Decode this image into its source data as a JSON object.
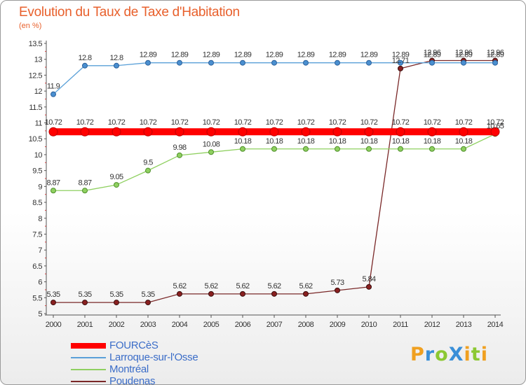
{
  "title": "Evolution du Taux de Taxe d'Habitation",
  "subtitle": "(en %)",
  "logo": {
    "text": "ProXiti",
    "letters": [
      "P",
      "r",
      "o",
      "X",
      "i",
      "t",
      "i"
    ],
    "colors": [
      "#f0a020",
      "#3a8fd8",
      "#8cc832",
      "#3a8fd8",
      "#f0a020",
      "#8cc832",
      "#f0a020"
    ]
  },
  "chart_data": {
    "type": "line",
    "title": "Evolution du Taux de Taxe d'Habitation",
    "subtitle": "(en %)",
    "xlabel": "",
    "ylabel": "",
    "x": [
      "2000",
      "2001",
      "2002",
      "2003",
      "2004",
      "2005",
      "2006",
      "2007",
      "2008",
      "2009",
      "2010",
      "2011",
      "2012",
      "2013",
      "2014"
    ],
    "ylim": [
      5,
      13.5
    ],
    "yticks": [
      "5",
      "5.5",
      "6",
      "6.5",
      "7",
      "7.5",
      "8",
      "8.5",
      "9",
      "9.5",
      "10",
      "10.5",
      "11",
      "11.5",
      "12",
      "12.5",
      "13",
      "13.5"
    ],
    "grid": false,
    "legend": "bottom-left",
    "series": [
      {
        "name": "FOURCèS",
        "color": "#ff0000",
        "values": [
          10.72,
          10.72,
          10.72,
          10.72,
          10.72,
          10.72,
          10.72,
          10.72,
          10.72,
          10.72,
          10.72,
          10.72,
          10.72,
          10.72,
          10.72
        ],
        "labels": [
          "10.72",
          "10.72",
          "10.72",
          "10.72",
          "10.72",
          "10.72",
          "10.72",
          "10.72",
          "10.72",
          "10.72",
          "10.72",
          "10.72",
          "10.72",
          "10.72",
          "10.72"
        ]
      },
      {
        "name": "Larroque-sur-l'Osse",
        "color": "#5aa0d8",
        "values": [
          11.9,
          12.8,
          12.8,
          12.89,
          12.89,
          12.89,
          12.89,
          12.89,
          12.89,
          12.89,
          12.89,
          12.89,
          12.89,
          12.89,
          12.89
        ],
        "labels": [
          "11.9",
          "12.8",
          "12.8",
          "12.89",
          "12.89",
          "12.89",
          "12.89",
          "12.89",
          "12.89",
          "12.89",
          "12.89",
          "12.89",
          "12.89",
          "12.89",
          "12.89"
        ]
      },
      {
        "name": "Montréal",
        "color": "#8fd060",
        "values": [
          8.87,
          8.87,
          9.05,
          9.5,
          9.98,
          10.08,
          10.18,
          10.18,
          10.18,
          10.18,
          10.18,
          10.18,
          10.18,
          10.18,
          10.65
        ],
        "labels": [
          "8.87",
          "8.87",
          "9.05",
          "9.5",
          "9.98",
          "10.08",
          "10.18",
          "10.18",
          "10.18",
          "10.18",
          "10.18",
          "10.18",
          "10.18",
          "10.18",
          "10.65"
        ]
      },
      {
        "name": "Poudenas",
        "color": "#7a2828",
        "values": [
          5.35,
          5.35,
          5.35,
          5.35,
          5.62,
          5.62,
          5.62,
          5.62,
          5.62,
          5.73,
          5.84,
          12.71,
          12.96,
          12.96,
          12.96
        ],
        "labels": [
          "5.35",
          "5.35",
          "5.35",
          "5.35",
          "5.62",
          "5.62",
          "5.62",
          "5.62",
          "5.62",
          "5.73",
          "5.84",
          "12.71",
          "12.96",
          "12.96",
          "12.96"
        ]
      }
    ]
  }
}
